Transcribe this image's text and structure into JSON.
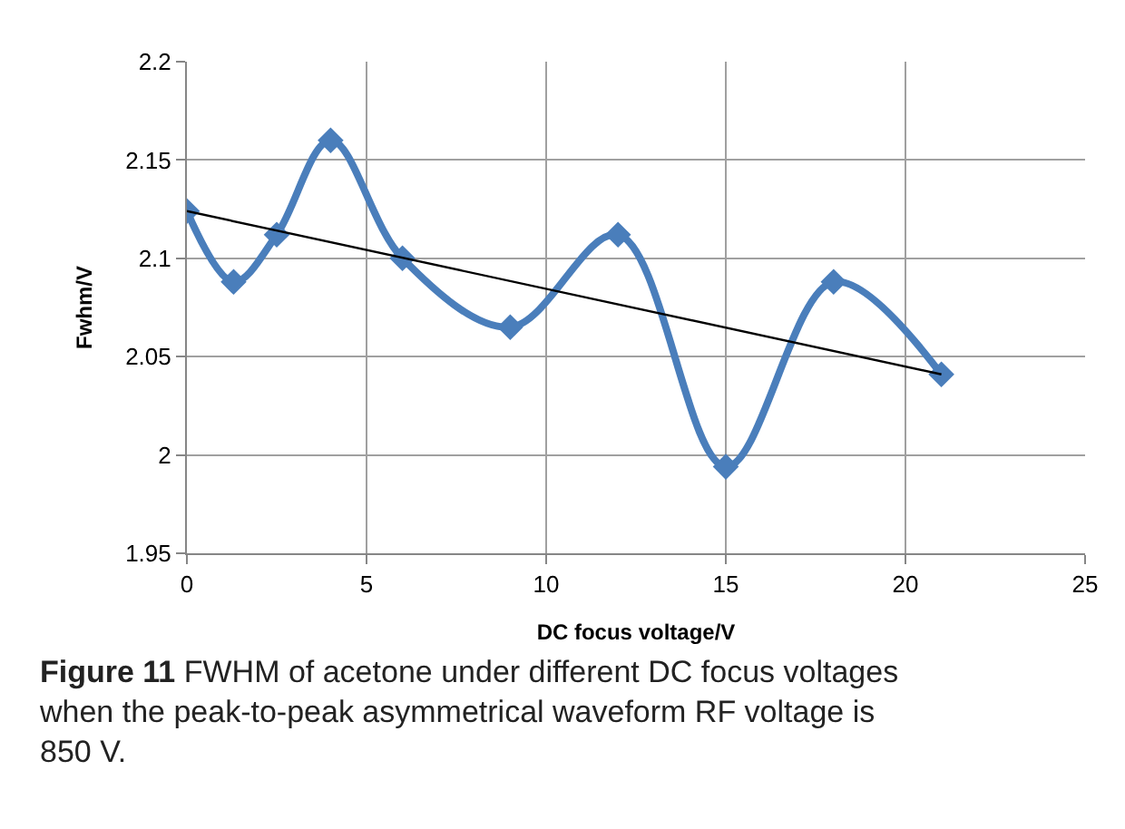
{
  "chart_data": {
    "type": "line",
    "xlabel": "DC focus voltage/V",
    "ylabel": "Fwhm/V",
    "x": [
      0,
      1.3,
      2.5,
      4,
      6,
      9,
      12,
      15,
      18,
      21
    ],
    "series": [
      {
        "color": "#4a7ebb",
        "values": [
          2.124,
          2.088,
          2.112,
          2.16,
          2.1,
          2.065,
          2.112,
          1.994,
          2.088,
          2.041
        ],
        "marker": "diamond"
      },
      {
        "type": "line",
        "color": "#000000",
        "x": [
          0,
          21
        ],
        "values": [
          2.124,
          2.041
        ],
        "marker": "none"
      }
    ],
    "xlim": [
      0,
      25
    ],
    "xticks": [
      0,
      5,
      10,
      15,
      20,
      25
    ],
    "ylim": [
      1.95,
      2.2
    ],
    "yticks": [
      1.95,
      2,
      2.05,
      2.1,
      2.15,
      2.2
    ],
    "grid": true,
    "annotations": [
      "Figure 11 FWHM of acetone under different DC focus voltages when the peak-to-peak asymmetrical waveform RF voltage is 850 V."
    ]
  }
}
